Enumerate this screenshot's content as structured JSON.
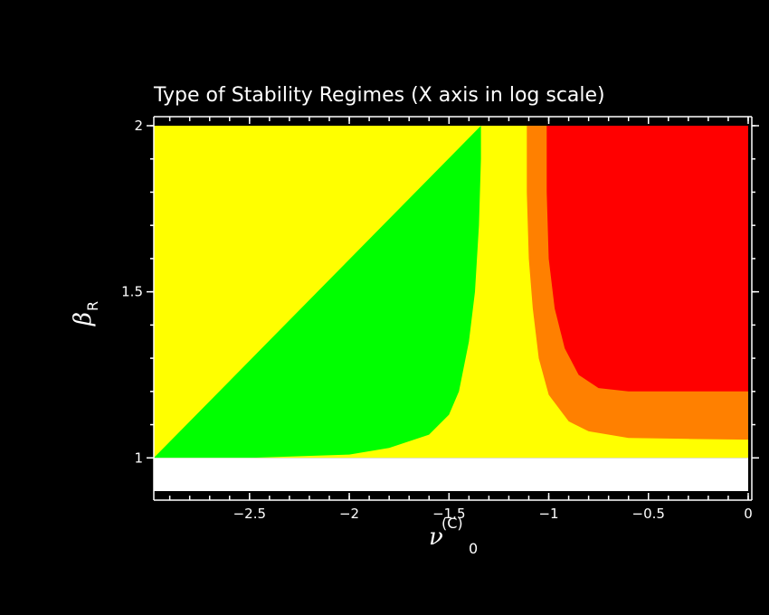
{
  "chart_data": {
    "type": "heatmap",
    "title": "Type of Stability Regimes (X axis in log scale)",
    "xlabel": {
      "symbol": "ν",
      "superscript": "(C)",
      "subscript": "0"
    },
    "ylabel": {
      "symbol": "β",
      "subscript": "R"
    },
    "xlim": [
      -2.98,
      0
    ],
    "ylim": [
      0.9,
      2
    ],
    "x_scale": "log10",
    "x_ticks": [
      -2.5,
      -2,
      -1.5,
      -1,
      -0.5,
      0
    ],
    "x_tick_labels": [
      "−2.5",
      "−2",
      "−1.5",
      "−1",
      "−0.5",
      "0"
    ],
    "y_ticks": [
      1,
      1.5,
      2
    ],
    "y_tick_labels": [
      "1",
      "1.5",
      "2"
    ],
    "background": "#000000",
    "regions": [
      {
        "name": "green",
        "color": "#00ff00"
      },
      {
        "name": "yellow",
        "color": "#ffff00"
      },
      {
        "name": "orange",
        "color": "#ff8000"
      },
      {
        "name": "red",
        "color": "#ff0000"
      },
      {
        "name": "white",
        "color": "#ffffff"
      }
    ],
    "boundaries": {
      "green_yellow": [
        [
          -2.98,
          1.0
        ],
        [
          -2.5,
          1.0
        ],
        [
          -2.0,
          1.01
        ],
        [
          -1.8,
          1.03
        ],
        [
          -1.6,
          1.07
        ],
        [
          -1.5,
          1.13
        ],
        [
          -1.45,
          1.2
        ],
        [
          -1.4,
          1.35
        ],
        [
          -1.37,
          1.5
        ],
        [
          -1.35,
          1.7
        ],
        [
          -1.34,
          1.9
        ],
        [
          -1.34,
          2.0
        ]
      ],
      "yellow_orange": [
        [
          -1.11,
          2.0
        ],
        [
          -1.11,
          1.8
        ],
        [
          -1.1,
          1.6
        ],
        [
          -1.08,
          1.45
        ],
        [
          -1.05,
          1.3
        ],
        [
          -1.0,
          1.19
        ],
        [
          -0.9,
          1.11
        ],
        [
          -0.8,
          1.08
        ],
        [
          -0.6,
          1.06
        ],
        [
          -0.3,
          1.057
        ],
        [
          0,
          1.055
        ]
      ],
      "orange_red": [
        [
          -1.01,
          2.0
        ],
        [
          -1.01,
          1.8
        ],
        [
          -1.0,
          1.6
        ],
        [
          -0.97,
          1.45
        ],
        [
          -0.92,
          1.33
        ],
        [
          -0.85,
          1.25
        ],
        [
          -0.75,
          1.21
        ],
        [
          -0.6,
          1.2
        ],
        [
          -0.3,
          1.2
        ],
        [
          0,
          1.2
        ]
      ],
      "white_top": 1.0
    }
  }
}
